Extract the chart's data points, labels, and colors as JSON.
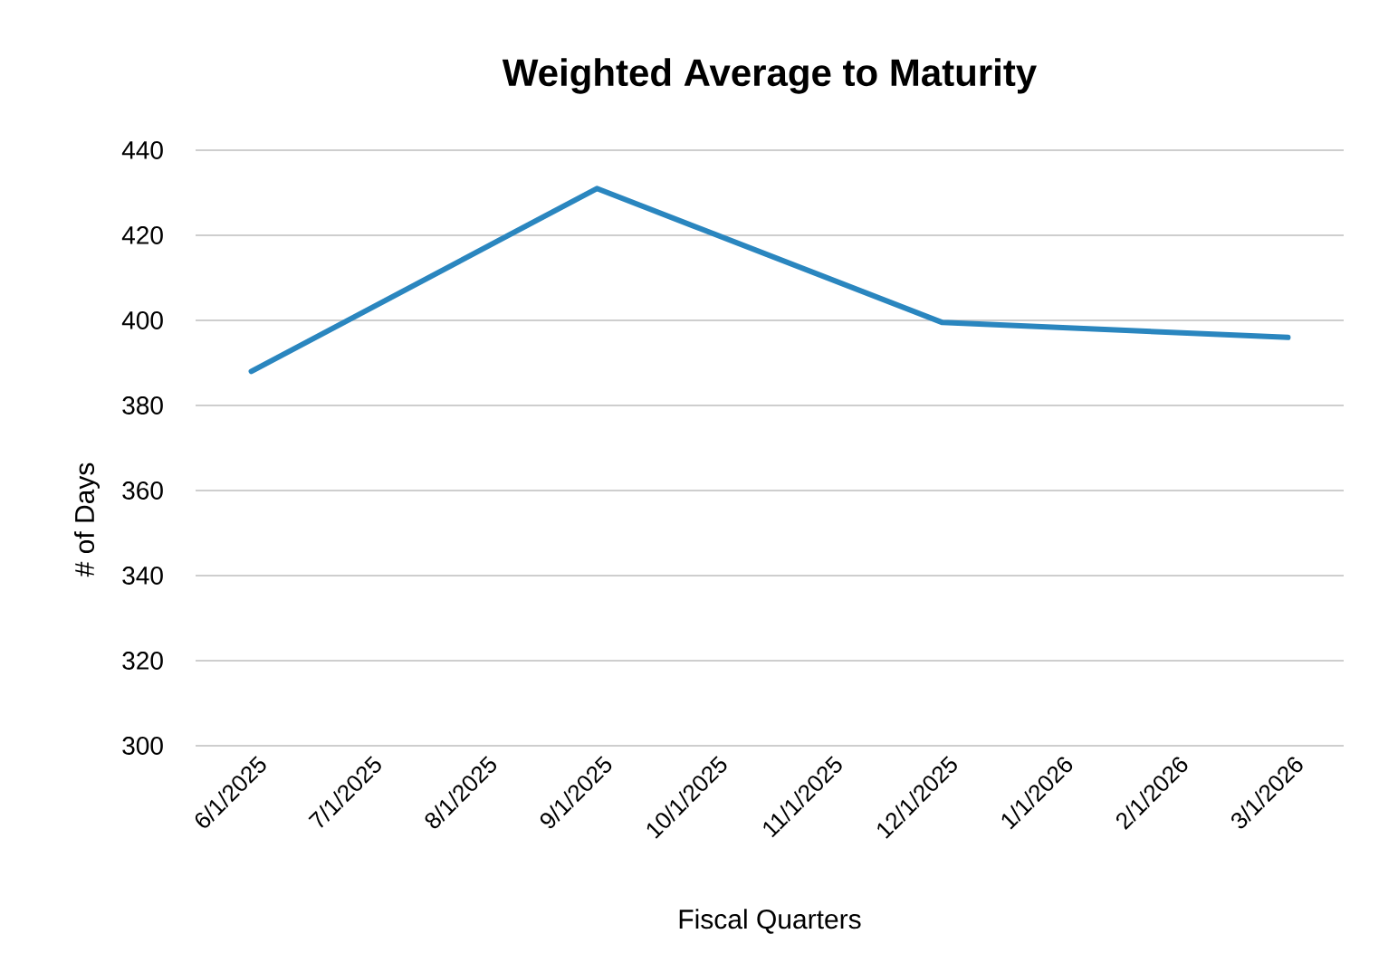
{
  "chart_data": {
    "type": "line",
    "title": "Weighted Average to Maturity",
    "xlabel": "Fiscal Quarters",
    "ylabel": "# of Days",
    "x": [
      "2025-06-01",
      "2025-09-01",
      "2025-12-01",
      "2026-03-01"
    ],
    "series": [
      {
        "color": "#2a86bf",
        "values": [
          388,
          431,
          399.5,
          396
        ]
      }
    ],
    "xlim": [
      "2025-05-17",
      "2026-03-16"
    ],
    "xticks": [
      {
        "value": "2025-06-01",
        "label": "6/1/2025"
      },
      {
        "value": "2025-07-01",
        "label": "7/1/2025"
      },
      {
        "value": "2025-08-01",
        "label": "8/1/2025"
      },
      {
        "value": "2025-09-01",
        "label": "9/1/2025"
      },
      {
        "value": "2025-10-01",
        "label": "10/1/2025"
      },
      {
        "value": "2025-11-01",
        "label": "11/1/2025"
      },
      {
        "value": "2025-12-01",
        "label": "12/1/2025"
      },
      {
        "value": "2026-01-01",
        "label": "1/1/2026"
      },
      {
        "value": "2026-02-01",
        "label": "2/1/2026"
      },
      {
        "value": "2026-03-01",
        "label": "3/1/2026"
      }
    ],
    "ylim": [
      300,
      440
    ],
    "yticks": [
      300,
      320,
      340,
      360,
      380,
      400,
      420,
      440
    ],
    "grid": "y",
    "legend": false,
    "marker": "none",
    "line_style": "solid"
  }
}
